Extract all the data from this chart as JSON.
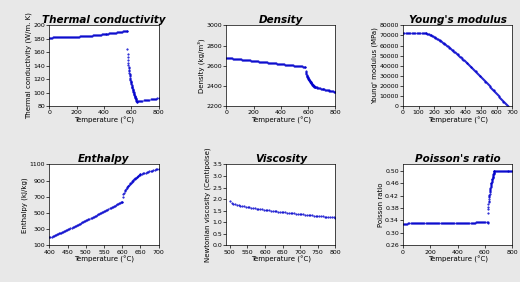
{
  "background_color": "#e8e8e8",
  "title_fontsize": 7.5,
  "axis_label_fontsize": 5.0,
  "tick_fontsize": 4.5,
  "dot_color": "#0000CC",
  "dot_size": 1.0,
  "thermal": {
    "title": "Thermal conductivity",
    "xlabel": "Temperature (°C)",
    "ylabel": "Thermal conductivity (W/m. K)",
    "xlim": [
      0,
      800
    ],
    "ylim": [
      80,
      200
    ],
    "yticks": [
      80,
      100,
      120,
      140,
      160,
      180,
      200
    ],
    "xticks": [
      0,
      200,
      400,
      600,
      800
    ]
  },
  "density": {
    "title": "Density",
    "xlabel": "Temperature (°C)",
    "ylabel": "Density (kg/m³)",
    "xlim": [
      0,
      800
    ],
    "ylim": [
      2200,
      3000
    ],
    "yticks": [
      2200,
      2400,
      2600,
      2800,
      3000
    ],
    "xticks": [
      0,
      200,
      400,
      600,
      800
    ]
  },
  "youngs": {
    "title": "Young's modulus",
    "xlabel": "Temperature (°C)",
    "ylabel": "Young' modulus (MPa)",
    "xlim": [
      0,
      700
    ],
    "ylim": [
      0,
      80000
    ],
    "yticks": [
      0,
      10000,
      20000,
      30000,
      40000,
      50000,
      60000,
      70000,
      80000
    ],
    "xticks": [
      0,
      100,
      200,
      300,
      400,
      500,
      600,
      700
    ]
  },
  "enthalpy": {
    "title": "Enthalpy",
    "xlabel": "Temperature (°C)",
    "ylabel": "Enthalpy (kJ/kg)",
    "xlim": [
      400,
      700
    ],
    "ylim": [
      100,
      1100
    ],
    "yticks": [
      100,
      300,
      500,
      700,
      900,
      1100
    ],
    "xticks": [
      400,
      450,
      500,
      550,
      600,
      650,
      700
    ]
  },
  "viscosity": {
    "title": "Viscosity",
    "xlabel": "Temperature (°C)",
    "ylabel": "Newtonian viscosity (Centipoise)",
    "xlim": [
      490,
      800
    ],
    "ylim": [
      0,
      3.5
    ],
    "yticks": [
      0,
      0.5,
      1.0,
      1.5,
      2.0,
      2.5,
      3.0,
      3.5
    ],
    "xticks": [
      500,
      550,
      600,
      650,
      700,
      750,
      800
    ]
  },
  "poisson": {
    "title": "Poisson's ratio",
    "xlabel": "Temperature (°C)",
    "ylabel": "Poisson ratio",
    "xlim": [
      0,
      800
    ],
    "ylim": [
      0.26,
      0.52
    ],
    "yticks": [
      0.26,
      0.3,
      0.34,
      0.38,
      0.42,
      0.46,
      0.5
    ],
    "xticks": [
      0,
      200,
      400,
      600,
      800
    ]
  }
}
